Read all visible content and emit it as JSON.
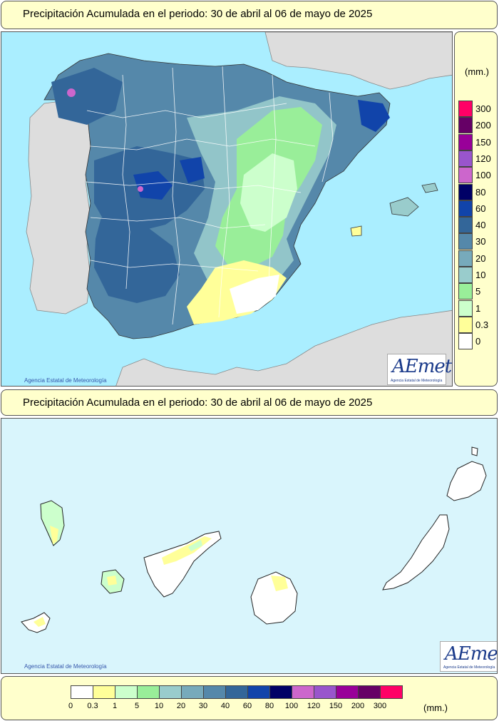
{
  "titles": {
    "top": "Precipitación Acumulada en el periodo: 30 de abril al 06 de mayo de 2025",
    "bottom": "Precipitación Acumulada en el periodo: 30 de abril al 06 de mayo de 2025"
  },
  "unit": "(mm.)",
  "copyright": "Agencia Estatal de Meteorología",
  "logo": {
    "text": "AEmet",
    "subtitle": "Agencia Estatal de Meteorología"
  },
  "legend": [
    {
      "label": "0",
      "color": "#ffffff"
    },
    {
      "label": "0.3",
      "color": "#ffff99"
    },
    {
      "label": "1",
      "color": "#ccffcc"
    },
    {
      "label": "5",
      "color": "#99ee99"
    },
    {
      "label": "10",
      "color": "#99cccc"
    },
    {
      "label": "20",
      "color": "#77aabb"
    },
    {
      "label": "30",
      "color": "#5588aa"
    },
    {
      "label": "40",
      "color": "#336699"
    },
    {
      "label": "60",
      "color": "#1144aa"
    },
    {
      "label": "80",
      "color": "#000066"
    },
    {
      "label": "100",
      "color": "#cc66cc"
    },
    {
      "label": "120",
      "color": "#9955cc"
    },
    {
      "label": "150",
      "color": "#990099"
    },
    {
      "label": "200",
      "color": "#660066"
    },
    {
      "label": "300",
      "color": "#ff0066"
    }
  ],
  "colors": {
    "sea": "#aaeeff",
    "land_other": "#dddddd",
    "panel": "#ffffcc"
  }
}
